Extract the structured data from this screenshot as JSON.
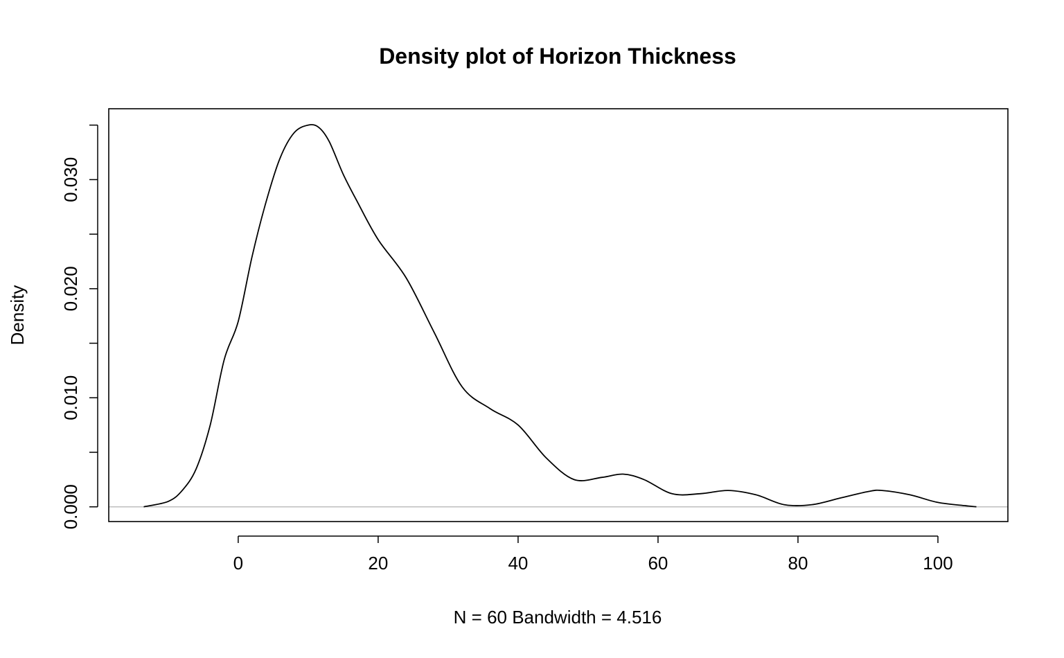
{
  "chart_data": {
    "type": "line",
    "title": "Density plot of Horizon Thickness",
    "xlabel": "N = 60   Bandwidth = 4.516",
    "ylabel": "Density",
    "xlim": [
      -18.5,
      110
    ],
    "ylim": [
      -0.00135,
      0.0365
    ],
    "x_ticks": [
      0,
      20,
      40,
      60,
      80,
      100
    ],
    "x_tick_labels": [
      "0",
      "20",
      "40",
      "60",
      "80",
      "100"
    ],
    "y_ticks": [
      0.0,
      0.005,
      0.01,
      0.015,
      0.02,
      0.025,
      0.03,
      0.035
    ],
    "y_tick_labels": [
      "0.000",
      "",
      "0.010",
      "",
      "0.020",
      "",
      "0.030",
      ""
    ],
    "baseline": 0,
    "grid": false,
    "legend": "none",
    "colors": {
      "line": "#000000",
      "baseline": "#bebebe",
      "frame": "#000000"
    },
    "series": [
      {
        "x": [
          -13.5,
          -10,
          -8,
          -6,
          -4,
          -2,
          0,
          2,
          4,
          6,
          8,
          10,
          11.5,
          13,
          15,
          17,
          20,
          24,
          28,
          32,
          36,
          40,
          44,
          48,
          52,
          55,
          58,
          62,
          66,
          70,
          74,
          78,
          82,
          86,
          90,
          92,
          96,
          100,
          104,
          105.5
        ],
        "y": [
          0.0,
          0.0005,
          0.0015,
          0.0035,
          0.0075,
          0.0135,
          0.017,
          0.023,
          0.028,
          0.032,
          0.0343,
          0.035,
          0.0348,
          0.0335,
          0.0305,
          0.028,
          0.0245,
          0.021,
          0.016,
          0.011,
          0.009,
          0.0075,
          0.0045,
          0.0025,
          0.0027,
          0.003,
          0.0025,
          0.0012,
          0.0012,
          0.0015,
          0.0011,
          0.0002,
          0.0002,
          0.0008,
          0.0014,
          0.0015,
          0.0011,
          0.0004,
          0.0001,
          0.0
        ]
      }
    ]
  }
}
